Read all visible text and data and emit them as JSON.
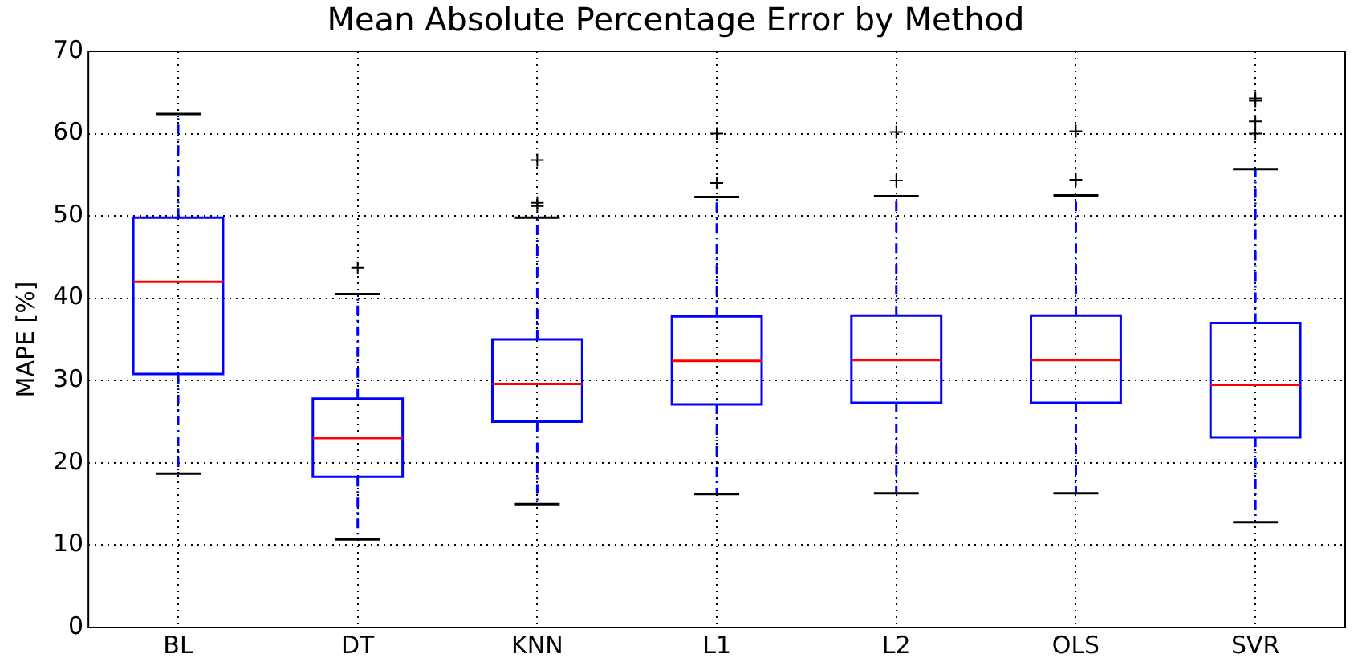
{
  "chart_data": {
    "type": "box",
    "title": "Mean Absolute Percentage Error by Method",
    "ylabel": "MAPE [%]",
    "categories": [
      "BL",
      "DT",
      "KNN",
      "L1",
      "L2",
      "OLS",
      "SVR"
    ],
    "ylim": [
      0,
      70
    ],
    "yticks": [
      0,
      10,
      20,
      30,
      40,
      50,
      60,
      70
    ],
    "grid": true,
    "series": [
      {
        "color": "#0000ff",
        "boxes": [
          {
            "low": 18.7,
            "q1": 30.8,
            "median": 42,
            "q3": 49.8,
            "high": 62.4
          },
          {
            "low": 10.7,
            "q1": 18.3,
            "median": 23,
            "q3": 27.8,
            "high": 40.5,
            "outliers": [
              43.7
            ]
          },
          {
            "low": 15,
            "q1": 25,
            "median": 29.6,
            "q3": 35,
            "high": 49.8,
            "outliers": [
              51.2,
              51.6,
              56.8
            ]
          },
          {
            "low": 16.2,
            "q1": 27.1,
            "median": 32.4,
            "q3": 37.8,
            "high": 52.3,
            "outliers": [
              54,
              60
            ]
          },
          {
            "low": 16.3,
            "q1": 27.3,
            "median": 32.5,
            "q3": 37.9,
            "high": 52.4,
            "outliers": [
              54.3,
              60.2
            ]
          },
          {
            "low": 16.3,
            "q1": 27.3,
            "median": 32.5,
            "q3": 37.9,
            "high": 52.5,
            "outliers": [
              54.4,
              60.3
            ]
          },
          {
            "low": 12.8,
            "q1": 23.1,
            "median": 29.5,
            "q3": 37,
            "high": 55.7,
            "outliers": [
              60,
              61.5,
              64,
              64.3
            ]
          }
        ]
      }
    ]
  }
}
